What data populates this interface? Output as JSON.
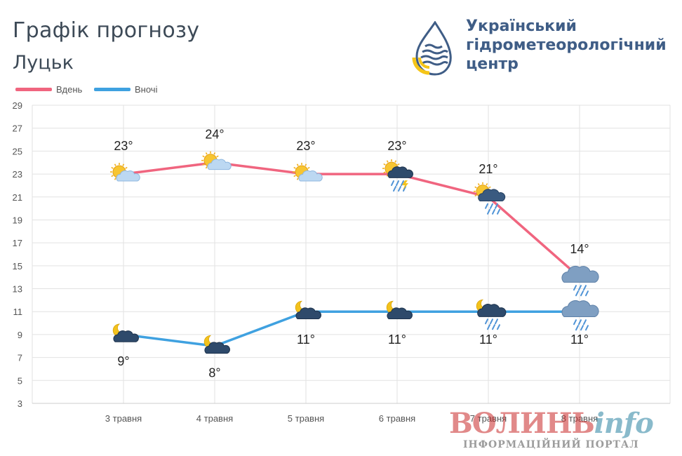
{
  "header": {
    "title": "Графік прогнозу",
    "city": "Луцьк"
  },
  "organization": {
    "name_line1": "Український",
    "name_line2": "гідрометеорологічний",
    "name_line3": "центр"
  },
  "watermark": {
    "brand_main": "ВОЛИНЬ",
    "brand_suffix": "info",
    "tagline": "ІНФОРМАЦІЙНИЙ ПОРТАЛ"
  },
  "colors": {
    "day": "#f0657f",
    "night": "#3fa1e0",
    "grid": "#e2e2e2",
    "axis_text": "#555555",
    "logo_blue": "#3f5d86",
    "logo_yellow": "#f5c518"
  },
  "chart_data": {
    "type": "line",
    "categories": [
      "3 травня",
      "4 травня",
      "5 травня",
      "6 травня",
      "7 травня",
      "8 травня"
    ],
    "ylim": [
      3,
      29
    ],
    "yticks": [
      3,
      5,
      7,
      9,
      11,
      13,
      15,
      17,
      19,
      21,
      23,
      25,
      27,
      29
    ],
    "grid": true,
    "legend_position": "top-left",
    "series": [
      {
        "name": "Вдень",
        "color": "#f0657f",
        "values": [
          23,
          24,
          23,
          23,
          21,
          14
        ],
        "labels": [
          "23°",
          "24°",
          "23°",
          "23°",
          "21°",
          "14°"
        ],
        "icons": [
          "sun-cloud-icon",
          "sun-cloud-icon",
          "sun-cloud-icon",
          "sun-thunderstorm-rain-icon",
          "sun-cloud-rain-icon",
          "cloud-rain-icon"
        ]
      },
      {
        "name": "Вночі",
        "color": "#3fa1e0",
        "values": [
          9,
          8,
          11,
          11,
          11,
          11
        ],
        "labels": [
          "9°",
          "8°",
          "11°",
          "11°",
          "11°",
          "11°"
        ],
        "icons": [
          "moon-cloud-icon",
          "moon-cloud-icon",
          "moon-cloud-icon",
          "moon-cloud-icon",
          "moon-cloud-rain-icon",
          "cloud-rain-icon"
        ]
      }
    ]
  }
}
